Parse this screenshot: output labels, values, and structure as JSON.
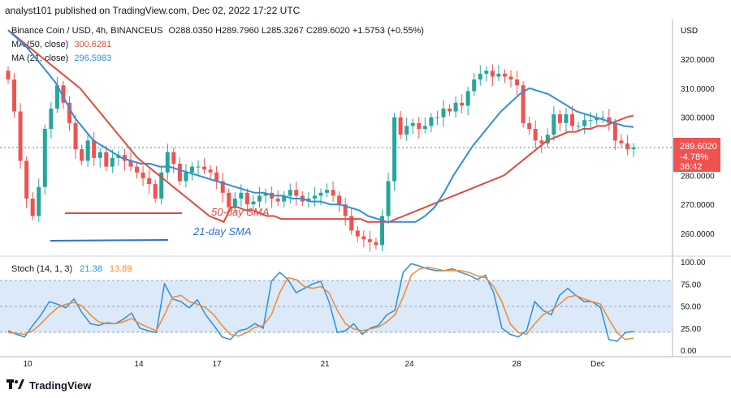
{
  "header": {
    "text": "analyst101 published on TradingView.com, Dec 02, 2022 17:22 UTC"
  },
  "legend": {
    "symbol": "Binance Coin / USD, 4h, BINANCEUS",
    "ohlc": "O288.0350  H289.7960  L285.3267  C289.6020  +1.5753 (+0.55%)",
    "ma50_label": "MA (50, close)",
    "ma50_value": "300.6281",
    "ma21_label": "MA (21, close)",
    "ma21_value": "296.5983"
  },
  "price_axis": {
    "currency": "USD",
    "ticks": [
      "320.0000",
      "310.0000",
      "300.0000",
      "280.0000",
      "270.0000",
      "260.0000"
    ],
    "last_price": "289.6020",
    "change_pct": "-4.78%",
    "countdown": "36:42"
  },
  "annotations": {
    "sma50": "50-day SMA",
    "sma21": "21-day SMA"
  },
  "stoch": {
    "label": "Stoch (14, 1, 3)",
    "k_value": "21.38",
    "d_value": "13.89",
    "ticks": [
      "100.00",
      "75.00",
      "50.00",
      "25.00",
      "0.00"
    ]
  },
  "time_axis": [
    "10",
    "14",
    "17",
    "21",
    "24",
    "28",
    "Dec"
  ],
  "footer": {
    "brand": "TradingView"
  },
  "colors": {
    "up": "#26a69a",
    "down": "#ef5350",
    "ma50": "#e04b3f",
    "ma21": "#2f8fd8",
    "stochK": "#2f8fd8",
    "stochD": "#f08b2b",
    "band": "#dbe9f9"
  },
  "chart_data": {
    "type": "candlestick",
    "symbol": "Binance Coin / USD",
    "interval": "4h",
    "ylim": [
      251,
      330
    ],
    "x_ticks": [
      "10",
      "14",
      "17",
      "21",
      "24",
      "28",
      "Dec"
    ],
    "closes": [
      313,
      302,
      285,
      272,
      266,
      276,
      296,
      303,
      311,
      305,
      298,
      289,
      285,
      292,
      286,
      288,
      283,
      286,
      287,
      285,
      283,
      281,
      279,
      277,
      272,
      281,
      288,
      284,
      278,
      281,
      283,
      283,
      282,
      281,
      278,
      274,
      269,
      272,
      274,
      270,
      271,
      273,
      274,
      272,
      271,
      273,
      275,
      273,
      271,
      272,
      273,
      274,
      275,
      273,
      270,
      266,
      261,
      259,
      258,
      257,
      256,
      266,
      278,
      300,
      294,
      297,
      298,
      296,
      297,
      300,
      300,
      303,
      302,
      305,
      304,
      309,
      313,
      315,
      316,
      314,
      315,
      314,
      313,
      311,
      298,
      296,
      292,
      291,
      294,
      301,
      298,
      301,
      297,
      297,
      299,
      299,
      300,
      300,
      298,
      292,
      291,
      289,
      289.6
    ],
    "ma50": [
      330,
      328,
      326,
      324,
      322,
      320,
      318,
      316,
      314,
      312,
      310,
      307,
      304,
      301,
      298,
      295,
      292,
      289,
      286,
      284,
      282,
      280,
      278,
      276,
      274,
      272,
      270,
      268,
      266,
      265,
      264,
      269,
      269,
      268,
      268,
      267,
      266,
      266,
      265,
      265,
      265,
      265,
      265,
      265,
      265,
      265,
      265,
      265,
      265,
      265,
      264,
      264,
      264,
      264,
      265,
      266,
      267,
      268,
      269,
      270,
      271,
      272,
      273,
      274,
      275,
      276,
      277,
      278,
      279,
      280,
      282,
      284,
      286,
      288,
      290,
      292,
      293,
      294,
      295,
      295,
      296,
      296,
      297,
      297,
      298,
      299,
      300,
      300.6
    ],
    "ma21": [
      330,
      327,
      324,
      320,
      316,
      312,
      306,
      300,
      296,
      292,
      290,
      288,
      286,
      285,
      284,
      284,
      283,
      283,
      282,
      281,
      280,
      279,
      278,
      277,
      276,
      275,
      274,
      274,
      273,
      273,
      272,
      272,
      271,
      271,
      270,
      270,
      269,
      268,
      266,
      265,
      264,
      264,
      264,
      264,
      266,
      269,
      274,
      280,
      285,
      290,
      294,
      298,
      302,
      305,
      308,
      310,
      309,
      308,
      306,
      304,
      302,
      301,
      300,
      299,
      298,
      297,
      296.6
    ],
    "stoch_k": [
      22,
      18,
      15,
      28,
      40,
      55,
      52,
      48,
      58,
      42,
      30,
      28,
      31,
      30,
      35,
      42,
      25,
      22,
      20,
      75,
      58,
      55,
      48,
      57,
      40,
      28,
      15,
      12,
      22,
      24,
      30,
      25,
      78,
      88,
      80,
      65,
      70,
      75,
      78,
      55,
      20,
      22,
      30,
      18,
      25,
      28,
      40,
      45,
      88,
      98,
      95,
      92,
      90,
      90,
      92,
      88,
      85,
      80,
      85,
      65,
      25,
      18,
      15,
      22,
      55,
      45,
      40,
      62,
      70,
      62,
      55,
      55,
      48,
      12,
      10,
      20,
      21.38
    ],
    "stoch_d": [
      20,
      19,
      18,
      22,
      30,
      40,
      48,
      52,
      54,
      50,
      40,
      32,
      30,
      30,
      32,
      36,
      30,
      26,
      22,
      40,
      60,
      62,
      55,
      52,
      48,
      40,
      28,
      18,
      16,
      20,
      26,
      28,
      40,
      65,
      82,
      80,
      72,
      70,
      72,
      65,
      45,
      30,
      24,
      22,
      24,
      26,
      32,
      40,
      60,
      85,
      92,
      94,
      92,
      90,
      90,
      90,
      88,
      84,
      82,
      72,
      55,
      30,
      20,
      18,
      30,
      40,
      45,
      52,
      60,
      62,
      58,
      55,
      52,
      35,
      20,
      12,
      13.89
    ]
  }
}
